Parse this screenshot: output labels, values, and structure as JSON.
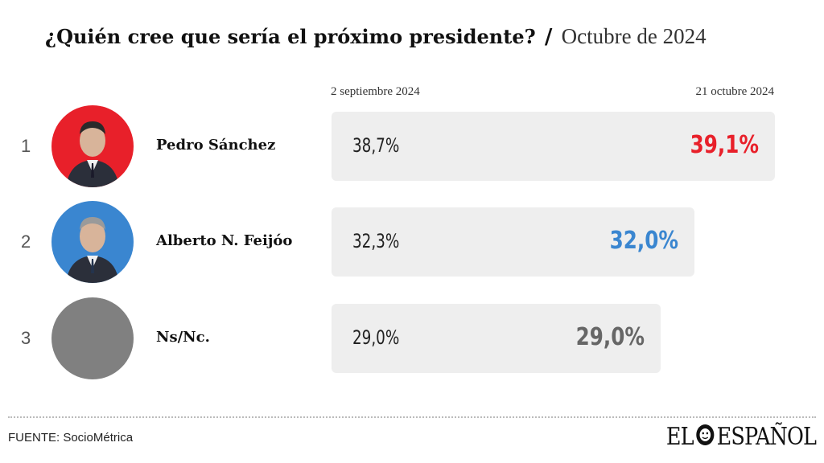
{
  "header": {
    "title": "¿Quién cree que sería el próximo presidente?",
    "separator": "/",
    "subtitle": "Octubre de 2024"
  },
  "colors": {
    "sanchez": "#e8202a",
    "feijoo": "#3a86d0",
    "nsnc": "#666666",
    "bar_bg": "#eeeeee"
  },
  "chart_data": {
    "type": "bar",
    "title": "¿Quién cree que sería el próximo presidente? / Octubre de 2024",
    "column_labels": {
      "previous": "2 septiembre 2024",
      "current": "21 octubre 2024"
    },
    "categories": [
      "Pedro Sánchez",
      "Alberto N. Feijóo",
      "Ns/Nc."
    ],
    "series": [
      {
        "name": "2 septiembre 2024",
        "values": [
          38.7,
          32.3,
          29.0
        ]
      },
      {
        "name": "21 octubre 2024",
        "values": [
          39.1,
          32.0,
          29.0
        ]
      }
    ],
    "rows": [
      {
        "rank": "1",
        "name": "Pedro Sánchez",
        "prev": "38,7%",
        "curr": "39,1%",
        "curr_value": 39.1,
        "color": "#e8202a",
        "avatar_bg": "#e8202a",
        "avatar_icon": "portrait-pedro-sanchez"
      },
      {
        "rank": "2",
        "name": "Alberto N. Feijóo",
        "prev": "32,3%",
        "curr": "32,0%",
        "curr_value": 32.0,
        "color": "#3a86d0",
        "avatar_bg": "#3a86d0",
        "avatar_icon": "portrait-alberto-feijoo"
      },
      {
        "rank": "3",
        "name": "Ns/Nc.",
        "prev": "29,0%",
        "curr": "29,0%",
        "curr_value": 29.0,
        "color": "#666666",
        "avatar_bg": "#808080",
        "avatar_icon": "blank-circle"
      }
    ],
    "xlim": [
      0,
      39.1
    ]
  },
  "footer": {
    "source": "FUENTE: SocioMétrica",
    "logo_left": "EL",
    "logo_right": "ESPAÑOL"
  }
}
